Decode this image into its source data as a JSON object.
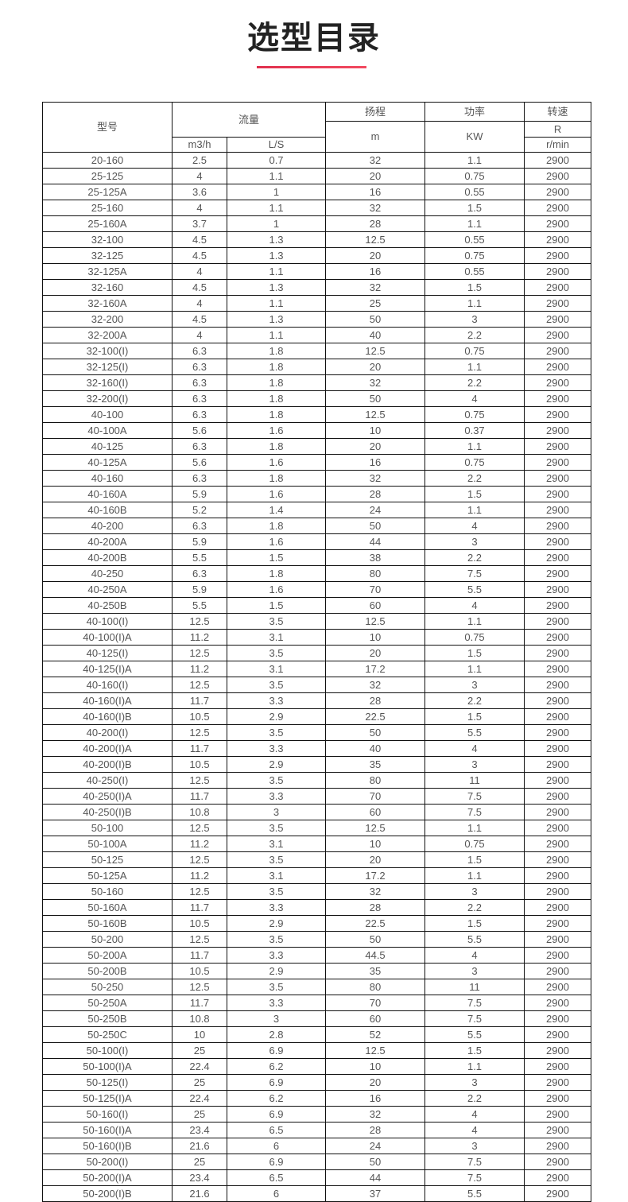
{
  "title": "选型目录",
  "accent_color": "#e83a55",
  "table": {
    "headers": {
      "model": "型号",
      "flow": "流量",
      "flow_m3h": "m3/h",
      "flow_ls": "L/S",
      "head": "扬程",
      "head_unit": "m",
      "power": "功率",
      "power_unit": "KW",
      "speed": "转速",
      "speed_unit_r": "R",
      "speed_unit": "r/min"
    },
    "rows": [
      [
        "20-160",
        "2.5",
        "0.7",
        "32",
        "1.1",
        "2900"
      ],
      [
        "25-125",
        "4",
        "1.1",
        "20",
        "0.75",
        "2900"
      ],
      [
        "25-125A",
        "3.6",
        "1",
        "16",
        "0.55",
        "2900"
      ],
      [
        "25-160",
        "4",
        "1.1",
        "32",
        "1.5",
        "2900"
      ],
      [
        "25-160A",
        "3.7",
        "1",
        "28",
        "1.1",
        "2900"
      ],
      [
        "32-100",
        "4.5",
        "1.3",
        "12.5",
        "0.55",
        "2900"
      ],
      [
        "32-125",
        "4.5",
        "1.3",
        "20",
        "0.75",
        "2900"
      ],
      [
        "32-125A",
        "4",
        "1.1",
        "16",
        "0.55",
        "2900"
      ],
      [
        "32-160",
        "4.5",
        "1.3",
        "32",
        "1.5",
        "2900"
      ],
      [
        "32-160A",
        "4",
        "1.1",
        "25",
        "1.1",
        "2900"
      ],
      [
        "32-200",
        "4.5",
        "1.3",
        "50",
        "3",
        "2900"
      ],
      [
        "32-200A",
        "4",
        "1.1",
        "40",
        "2.2",
        "2900"
      ],
      [
        "32-100(I)",
        "6.3",
        "1.8",
        "12.5",
        "0.75",
        "2900"
      ],
      [
        "32-125(I)",
        "6.3",
        "1.8",
        "20",
        "1.1",
        "2900"
      ],
      [
        "32-160(I)",
        "6.3",
        "1.8",
        "32",
        "2.2",
        "2900"
      ],
      [
        "32-200(I)",
        "6.3",
        "1.8",
        "50",
        "4",
        "2900"
      ],
      [
        "40-100",
        "6.3",
        "1.8",
        "12.5",
        "0.75",
        "2900"
      ],
      [
        "40-100A",
        "5.6",
        "1.6",
        "10",
        "0.37",
        "2900"
      ],
      [
        "40-125",
        "6.3",
        "1.8",
        "20",
        "1.1",
        "2900"
      ],
      [
        "40-125A",
        "5.6",
        "1.6",
        "16",
        "0.75",
        "2900"
      ],
      [
        "40-160",
        "6.3",
        "1.8",
        "32",
        "2.2",
        "2900"
      ],
      [
        "40-160A",
        "5.9",
        "1.6",
        "28",
        "1.5",
        "2900"
      ],
      [
        "40-160B",
        "5.2",
        "1.4",
        "24",
        "1.1",
        "2900"
      ],
      [
        "40-200",
        "6.3",
        "1.8",
        "50",
        "4",
        "2900"
      ],
      [
        "40-200A",
        "5.9",
        "1.6",
        "44",
        "3",
        "2900"
      ],
      [
        "40-200B",
        "5.5",
        "1.5",
        "38",
        "2.2",
        "2900"
      ],
      [
        "40-250",
        "6.3",
        "1.8",
        "80",
        "7.5",
        "2900"
      ],
      [
        "40-250A",
        "5.9",
        "1.6",
        "70",
        "5.5",
        "2900"
      ],
      [
        "40-250B",
        "5.5",
        "1.5",
        "60",
        "4",
        "2900"
      ],
      [
        "40-100(I)",
        "12.5",
        "3.5",
        "12.5",
        "1.1",
        "2900"
      ],
      [
        "40-100(I)A",
        "11.2",
        "3.1",
        "10",
        "0.75",
        "2900"
      ],
      [
        "40-125(I)",
        "12.5",
        "3.5",
        "20",
        "1.5",
        "2900"
      ],
      [
        "40-125(I)A",
        "11.2",
        "3.1",
        "17.2",
        "1.1",
        "2900"
      ],
      [
        "40-160(I)",
        "12.5",
        "3.5",
        "32",
        "3",
        "2900"
      ],
      [
        "40-160(I)A",
        "11.7",
        "3.3",
        "28",
        "2.2",
        "2900"
      ],
      [
        "40-160(I)B",
        "10.5",
        "2.9",
        "22.5",
        "1.5",
        "2900"
      ],
      [
        "40-200(I)",
        "12.5",
        "3.5",
        "50",
        "5.5",
        "2900"
      ],
      [
        "40-200(I)A",
        "11.7",
        "3.3",
        "40",
        "4",
        "2900"
      ],
      [
        "40-200(I)B",
        "10.5",
        "2.9",
        "35",
        "3",
        "2900"
      ],
      [
        "40-250(I)",
        "12.5",
        "3.5",
        "80",
        "11",
        "2900"
      ],
      [
        "40-250(I)A",
        "11.7",
        "3.3",
        "70",
        "7.5",
        "2900"
      ],
      [
        "40-250(I)B",
        "10.8",
        "3",
        "60",
        "7.5",
        "2900"
      ],
      [
        "50-100",
        "12.5",
        "3.5",
        "12.5",
        "1.1",
        "2900"
      ],
      [
        "50-100A",
        "11.2",
        "3.1",
        "10",
        "0.75",
        "2900"
      ],
      [
        "50-125",
        "12.5",
        "3.5",
        "20",
        "1.5",
        "2900"
      ],
      [
        "50-125A",
        "11.2",
        "3.1",
        "17.2",
        "1.1",
        "2900"
      ],
      [
        "50-160",
        "12.5",
        "3.5",
        "32",
        "3",
        "2900"
      ],
      [
        "50-160A",
        "11.7",
        "3.3",
        "28",
        "2.2",
        "2900"
      ],
      [
        "50-160B",
        "10.5",
        "2.9",
        "22.5",
        "1.5",
        "2900"
      ],
      [
        "50-200",
        "12.5",
        "3.5",
        "50",
        "5.5",
        "2900"
      ],
      [
        "50-200A",
        "11.7",
        "3.3",
        "44.5",
        "4",
        "2900"
      ],
      [
        "50-200B",
        "10.5",
        "2.9",
        "35",
        "3",
        "2900"
      ],
      [
        "50-250",
        "12.5",
        "3.5",
        "80",
        "11",
        "2900"
      ],
      [
        "50-250A",
        "11.7",
        "3.3",
        "70",
        "7.5",
        "2900"
      ],
      [
        "50-250B",
        "10.8",
        "3",
        "60",
        "7.5",
        "2900"
      ],
      [
        "50-250C",
        "10",
        "2.8",
        "52",
        "5.5",
        "2900"
      ],
      [
        "50-100(I)",
        "25",
        "6.9",
        "12.5",
        "1.5",
        "2900"
      ],
      [
        "50-100(I)A",
        "22.4",
        "6.2",
        "10",
        "1.1",
        "2900"
      ],
      [
        "50-125(I)",
        "25",
        "6.9",
        "20",
        "3",
        "2900"
      ],
      [
        "50-125(I)A",
        "22.4",
        "6.2",
        "16",
        "2.2",
        "2900"
      ],
      [
        "50-160(I)",
        "25",
        "6.9",
        "32",
        "4",
        "2900"
      ],
      [
        "50-160(I)A",
        "23.4",
        "6.5",
        "28",
        "4",
        "2900"
      ],
      [
        "50-160(I)B",
        "21.6",
        "6",
        "24",
        "3",
        "2900"
      ],
      [
        "50-200(I)",
        "25",
        "6.9",
        "50",
        "7.5",
        "2900"
      ],
      [
        "50-200(I)A",
        "23.4",
        "6.5",
        "44",
        "7.5",
        "2900"
      ],
      [
        "50-200(I)B",
        "21.6",
        "6",
        "37",
        "5.5",
        "2900"
      ]
    ]
  }
}
